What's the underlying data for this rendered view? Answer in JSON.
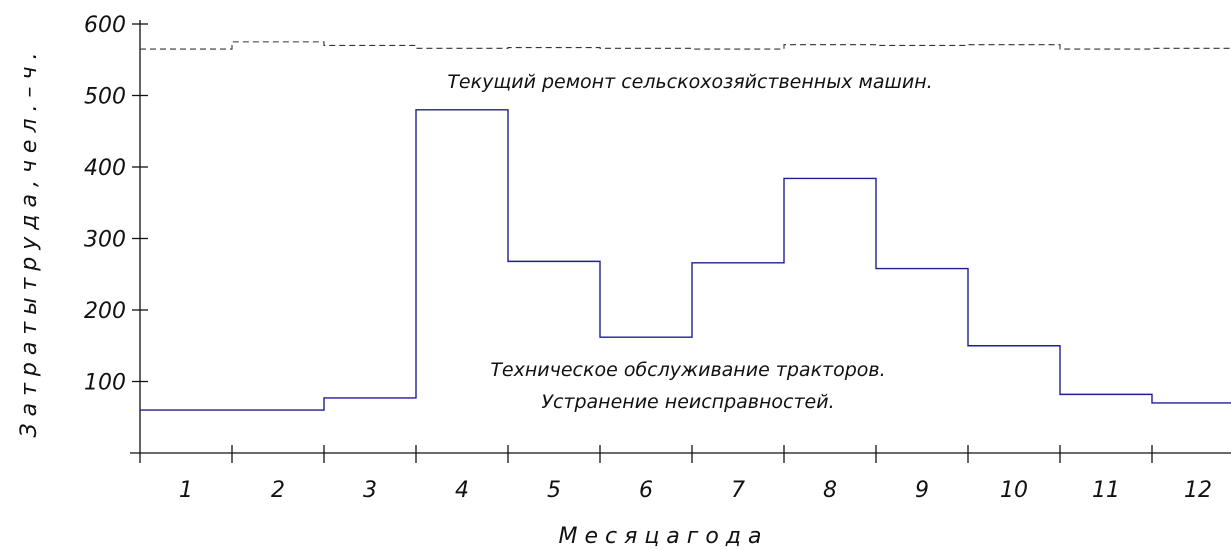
{
  "chart_data": {
    "type": "line",
    "step": true,
    "xlabel": "М е с я ц а   г о д а",
    "ylabel": "З а т р а т ы   т р у д а ,   ч е л .  –  ч .",
    "ylim": [
      0,
      600
    ],
    "yticks": [
      "100",
      "200",
      "300",
      "400",
      "500",
      "600"
    ],
    "categories": [
      "1",
      "2",
      "3",
      "4",
      "5",
      "6",
      "7",
      "8",
      "9",
      "10",
      "11",
      "12"
    ],
    "grid": false,
    "colors": {
      "axis": "#111111",
      "tractors": "#1f1f8f",
      "repair": "#333333"
    },
    "series": [
      {
        "name": "Текущий ремонт сельскохозяйственных машин.",
        "style": "dashed",
        "values": [
          565,
          575,
          570,
          566,
          567,
          566,
          565,
          571,
          570,
          571,
          565,
          566
        ]
      },
      {
        "name": "Техническое обслуживание тракторов. Устранение неисправностей.",
        "name_lines": [
          "Техническое обслуживание тракторов.",
          "Устранение неисправностей."
        ],
        "style": "solid",
        "values": [
          60,
          60,
          77,
          480,
          268,
          162,
          266,
          384,
          258,
          150,
          82,
          70
        ]
      }
    ]
  }
}
